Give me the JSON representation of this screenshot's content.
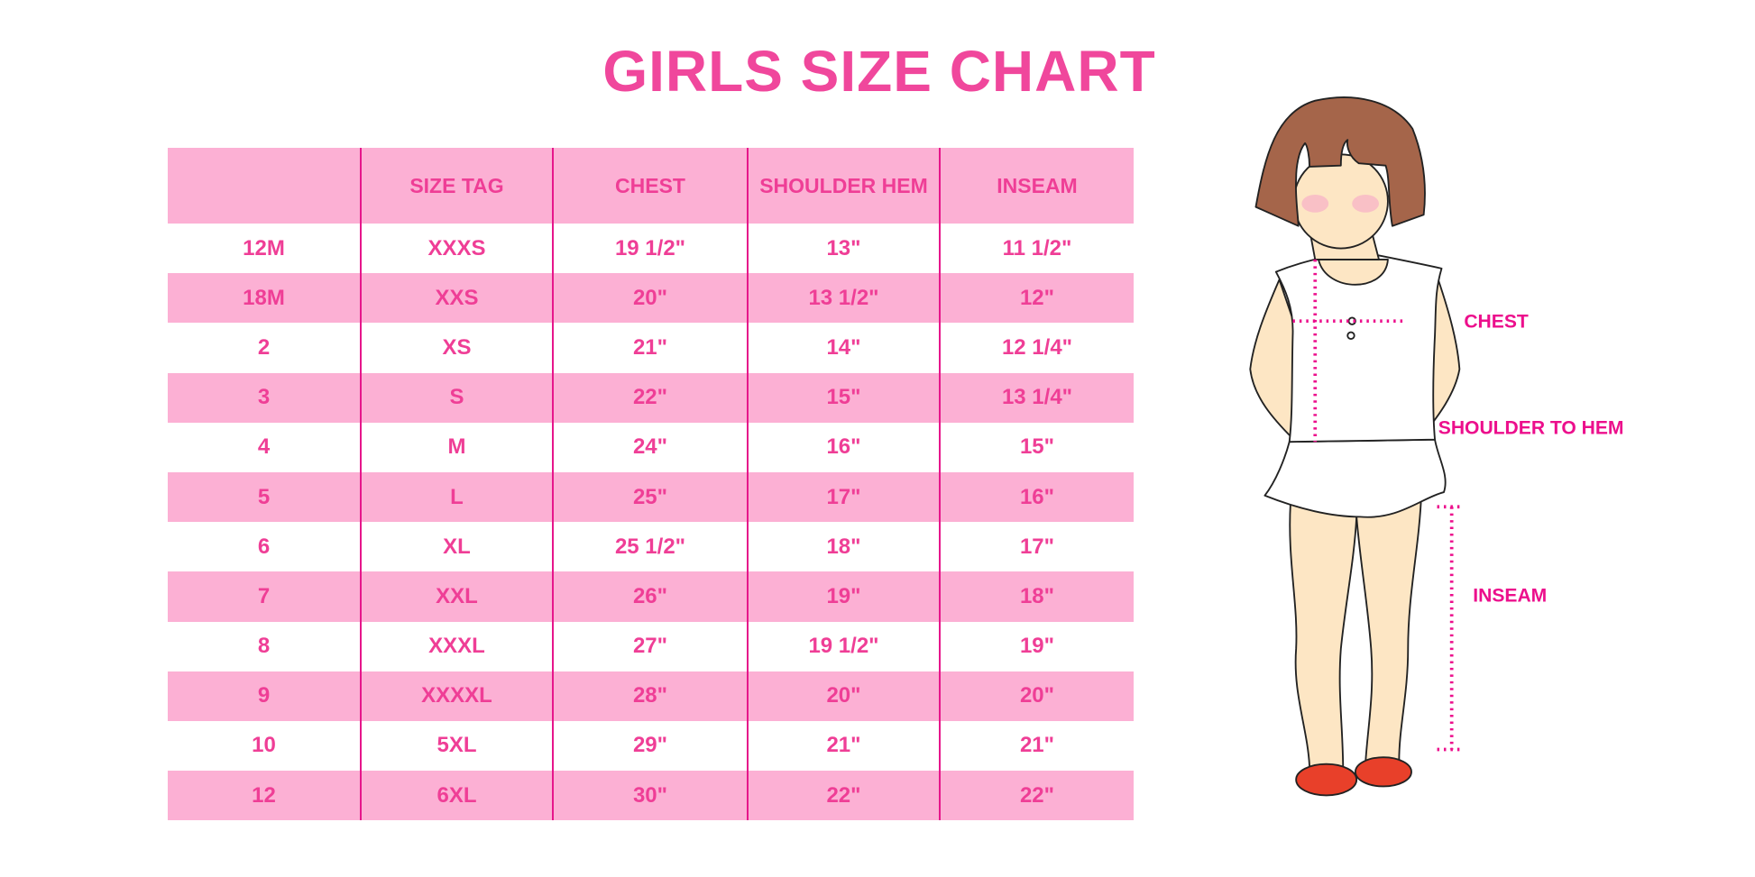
{
  "title": "GIRLS SIZE CHART",
  "colors": {
    "accent": "#f0479c",
    "row_band": "#fcb0d4",
    "divider": "#e6168b",
    "hair": "#a5654a",
    "skin": "#fde6c4",
    "shoes": "#e8402a"
  },
  "table": {
    "headers": [
      "",
      "SIZE TAG",
      "CHEST",
      "SHOULDER HEM",
      "INSEAM"
    ],
    "rows": [
      [
        "12M",
        "XXXS",
        "19 1/2\"",
        "13\"",
        "11 1/2\""
      ],
      [
        "18M",
        "XXS",
        "20\"",
        "13 1/2\"",
        "12\""
      ],
      [
        "2",
        "XS",
        "21\"",
        "14\"",
        "12 1/4\""
      ],
      [
        "3",
        "S",
        "22\"",
        "15\"",
        "13 1/4\""
      ],
      [
        "4",
        "M",
        "24\"",
        "16\"",
        "15\""
      ],
      [
        "5",
        "L",
        "25\"",
        "17\"",
        "16\""
      ],
      [
        "6",
        "XL",
        "25 1/2\"",
        "18\"",
        "17\""
      ],
      [
        "7",
        "XXL",
        "26\"",
        "19\"",
        "18\""
      ],
      [
        "8",
        "XXXL",
        "27\"",
        "19 1/2\"",
        "19\""
      ],
      [
        "9",
        "XXXXL",
        "28\"",
        "20\"",
        "20\""
      ],
      [
        "10",
        "5XL",
        "29\"",
        "21\"",
        "21\""
      ],
      [
        "12",
        "6XL",
        "30\"",
        "22\"",
        "22\""
      ]
    ]
  },
  "diagram": {
    "labels": {
      "chest": "CHEST",
      "shoulder_to_hem": "SHOULDER TO HEM",
      "inseam": "INSEAM"
    }
  }
}
